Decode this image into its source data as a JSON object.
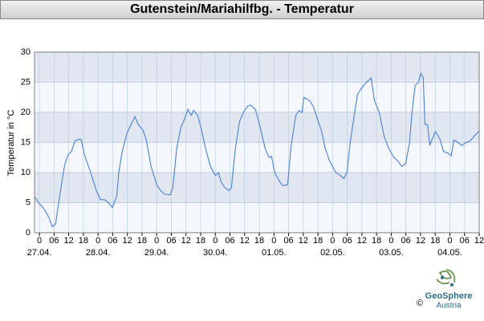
{
  "chart_data": {
    "type": "line",
    "title": "Gutenstein/Mariahilfbg. - Temperatur",
    "y_label": "Temperatur in °C",
    "series": [
      {
        "name": "Temperatur",
        "color": "#4a7fd4",
        "x": [
          -2,
          0,
          1.3,
          2.6,
          3.9,
          5.3,
          6.6,
          7.9,
          9.2,
          10.5,
          11.8,
          13.1,
          14.5,
          15.8,
          17.1,
          18.4,
          21,
          23.3,
          25,
          26.6,
          28.3,
          29.9,
          31.6,
          32.5,
          33.9,
          35.8,
          38.1,
          39.1,
          40.4,
          42.4,
          43.7,
          45.7,
          48,
          49.6,
          51.3,
          53.6,
          54.6,
          56.2,
          57.9,
          59.5,
          60.8,
          62.1,
          63.1,
          64.8,
          66.1,
          68,
          70,
          72,
          73.3,
          74.3,
          75.9,
          77.6,
          78.6,
          80.2,
          81.9,
          83.5,
          85.1,
          86.5,
          88.4,
          90.1,
          92.4,
          94,
          95,
          96.3,
          98.3,
          99.6,
          101.6,
          102.9,
          104.9,
          106.2,
          107.5,
          108.2,
          110.5,
          112.1,
          113.7,
          115.4,
          117,
          118.7,
          121.3,
          123.3,
          124.6,
          125.9,
          127.2,
          128.5,
          130.2,
          131.8,
          133.8,
          135.8,
          137.1,
          139.1,
          141.1,
          143,
          145,
          146.6,
          148.3,
          149.9,
          151.5,
          152.5,
          153.8,
          155.2,
          156.1,
          157.1,
          157.8,
          158.8,
          159.8,
          160.7,
          162.1,
          164,
          165.4,
          167.3,
          168.6,
          169.6,
          171.3,
          172.9,
          174.6,
          176.2,
          177.8,
          179.8
        ],
        "values": [
          6,
          4.8,
          4.3,
          3.5,
          2.5,
          1.0,
          1.5,
          5,
          8.5,
          11.5,
          13,
          13.5,
          15.2,
          15.5,
          15.5,
          13,
          10,
          7,
          5.5,
          5.5,
          5,
          4.2,
          6,
          10,
          13.5,
          16.5,
          18.5,
          19.3,
          18,
          17,
          15.5,
          11,
          8,
          7,
          6.4,
          6.3,
          7.5,
          14,
          17.5,
          19,
          20.5,
          19.5,
          20.3,
          19.5,
          17.5,
          14,
          11,
          9.5,
          10,
          8.5,
          7.5,
          7,
          7.5,
          14,
          18.5,
          20,
          21,
          21.2,
          20.5,
          18,
          14,
          12.5,
          12.7,
          10,
          8.5,
          7.8,
          8,
          14,
          19.5,
          20.3,
          20,
          22.5,
          22,
          21,
          19,
          17,
          14,
          12,
          10,
          9.5,
          9,
          10,
          15,
          18.5,
          23,
          24,
          25,
          25.7,
          22,
          20,
          16,
          14,
          12.5,
          12,
          11,
          11.5,
          15,
          20,
          24.5,
          25,
          26.5,
          25.8,
          18,
          18,
          14.5,
          15.5,
          16.8,
          15.5,
          13.5,
          13.2,
          12.8,
          15.4,
          15,
          14.5,
          15,
          15.2,
          16,
          16.8
        ]
      }
    ],
    "xlim": [
      -2,
      180
    ],
    "xticks": [
      {
        "value": 0,
        "label": "0"
      },
      {
        "value": 6,
        "label": "06"
      },
      {
        "value": 12,
        "label": "12"
      },
      {
        "value": 18,
        "label": "18"
      },
      {
        "value": 24,
        "label": "0"
      },
      {
        "value": 30,
        "label": "06"
      },
      {
        "value": 36,
        "label": "12"
      },
      {
        "value": 42,
        "label": "18"
      },
      {
        "value": 48,
        "label": "0"
      },
      {
        "value": 54,
        "label": "06"
      },
      {
        "value": 60,
        "label": "12"
      },
      {
        "value": 66,
        "label": "18"
      },
      {
        "value": 72,
        "label": "0"
      },
      {
        "value": 78,
        "label": "06"
      },
      {
        "value": 84,
        "label": "12"
      },
      {
        "value": 90,
        "label": "18"
      },
      {
        "value": 96,
        "label": "0"
      },
      {
        "value": 102,
        "label": "06"
      },
      {
        "value": 108,
        "label": "12"
      },
      {
        "value": 114,
        "label": "18"
      },
      {
        "value": 120,
        "label": "0"
      },
      {
        "value": 126,
        "label": "06"
      },
      {
        "value": 132,
        "label": "12"
      },
      {
        "value": 138,
        "label": "18"
      },
      {
        "value": 144,
        "label": "0"
      },
      {
        "value": 150,
        "label": "06"
      },
      {
        "value": 156,
        "label": "12"
      },
      {
        "value": 162,
        "label": "18"
      },
      {
        "value": 168,
        "label": "0"
      },
      {
        "value": 174,
        "label": "06"
      },
      {
        "value": 180,
        "label": "12"
      }
    ],
    "date_labels": [
      {
        "value": 0,
        "label": "27.04."
      },
      {
        "value": 24,
        "label": "28.04."
      },
      {
        "value": 48,
        "label": "29.04."
      },
      {
        "value": 72,
        "label": "30.04."
      },
      {
        "value": 96,
        "label": "01.05."
      },
      {
        "value": 120,
        "label": "02.05."
      },
      {
        "value": 144,
        "label": "03.05."
      },
      {
        "value": 168,
        "label": "04.05."
      }
    ],
    "ylim": [
      0,
      30
    ],
    "yticks": [
      0,
      5,
      10,
      15,
      20,
      25,
      30
    ],
    "grid": true,
    "logo": {
      "name": "GeoSphere",
      "sub": "Austria",
      "copyright": "©"
    }
  }
}
